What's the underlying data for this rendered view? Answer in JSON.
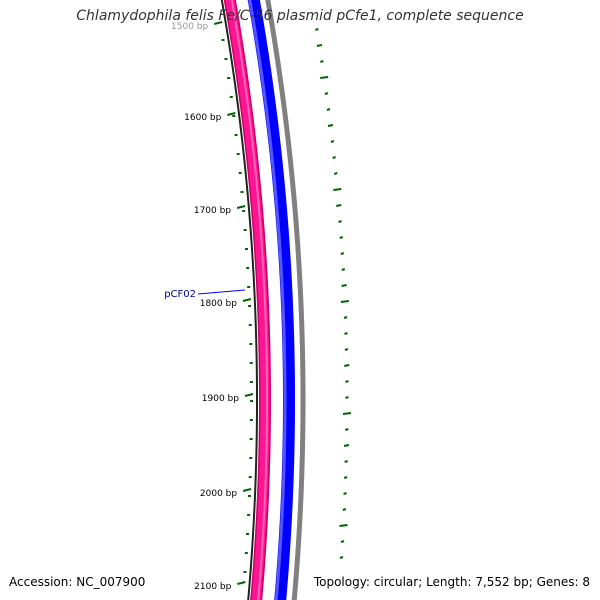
{
  "title": "Chlamydophila felis Fe/C-56 plasmid pCfe1, complete sequence",
  "accession_text": "Accession: NC_007900",
  "summary_text": "Topology: circular; Length: 7,552 bp; Genes: 8",
  "colors": {
    "pink_track": "#ff1493",
    "pink_dark": "#cc0066",
    "blue_track": "#0000ff",
    "blue_light": "#5555ff",
    "outer_track": "#808080",
    "gc_ticks": "#006400",
    "feature_label": "#00008b"
  },
  "ticks": [
    {
      "label": "1500 bp",
      "bp": 1500
    },
    {
      "label": "1600 bp",
      "bp": 1600
    },
    {
      "label": "1700 bp",
      "bp": 1700
    },
    {
      "label": "1800 bp",
      "bp": 1800
    },
    {
      "label": "1900 bp",
      "bp": 1900
    },
    {
      "label": "2000 bp",
      "bp": 2000
    },
    {
      "label": "2100 bp",
      "bp": 2100
    }
  ],
  "feature": {
    "label": "pCF02"
  }
}
